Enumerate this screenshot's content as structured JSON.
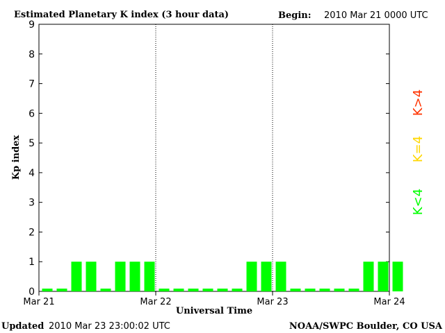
{
  "header": {
    "title": "Estimated Planetary K index (3 hour data)",
    "begin_label": "Begin:",
    "begin_value": "2010 Mar 21 0000 UTC"
  },
  "footer": {
    "updated_label": "Updated",
    "updated_value": "2010 Mar 23 23:00:02 UTC",
    "source": "NOAA/SWPC Boulder, CO USA"
  },
  "legend": {
    "high": "K>4",
    "equal": "K=4",
    "low": "K<4"
  },
  "colors": {
    "low": "#00ff00",
    "equal": "#ffd700",
    "high": "#ff3300",
    "axis": "#000000"
  },
  "chart_data": {
    "type": "bar",
    "title": "Estimated Planetary K index (3 hour data)",
    "xlabel": "Universal Time",
    "ylabel": "Kp index",
    "ylim": [
      0,
      9
    ],
    "yticks": [
      "0",
      "1",
      "2",
      "3",
      "4",
      "5",
      "6",
      "7",
      "8",
      "9"
    ],
    "xticks": [
      "Mar 21",
      "Mar 22",
      "Mar 23",
      "Mar 24"
    ],
    "interval_hours": 3,
    "values": [
      0,
      0,
      1,
      1,
      0,
      1,
      1,
      1,
      0,
      0,
      0,
      0,
      0,
      0,
      1,
      1,
      1,
      0,
      0,
      0,
      0,
      0,
      1,
      1,
      1
    ]
  }
}
